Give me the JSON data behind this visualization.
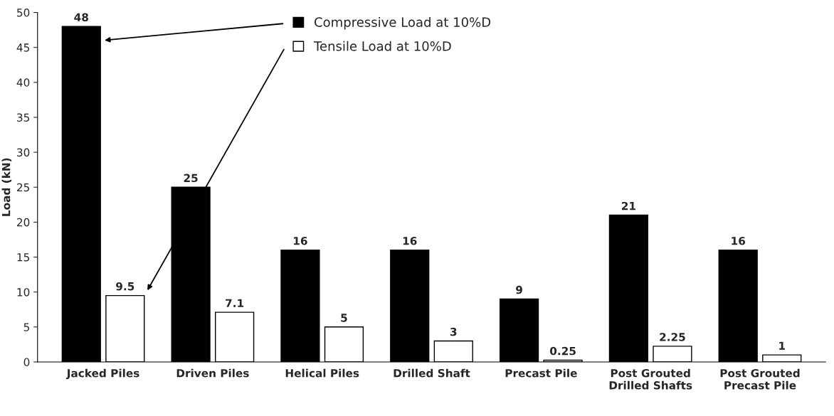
{
  "chart_data": {
    "type": "bar",
    "ylabel": "Load (kN)",
    "categories": [
      "Jacked Piles",
      "Driven Piles",
      "Helical Piles",
      "Drilled Shaft",
      "Precast Pile",
      "Post Grouted\nDrilled Shafts",
      "Post Grouted\nPrecast Pile"
    ],
    "series": [
      {
        "name": "Compressive Load at 10%D",
        "color": "#000000",
        "values": [
          48,
          25,
          16,
          16,
          9,
          21,
          16
        ]
      },
      {
        "name": "Tensile Load at 10%D",
        "color": "#ffffff",
        "values": [
          9.5,
          7.1,
          5,
          3,
          0.25,
          2.25,
          1
        ]
      }
    ],
    "ylim": [
      0,
      50
    ],
    "yticks": [
      0,
      5,
      10,
      15,
      20,
      25,
      30,
      35,
      40,
      45,
      50
    ],
    "data_labels": true,
    "grid": false,
    "legend": "top"
  }
}
